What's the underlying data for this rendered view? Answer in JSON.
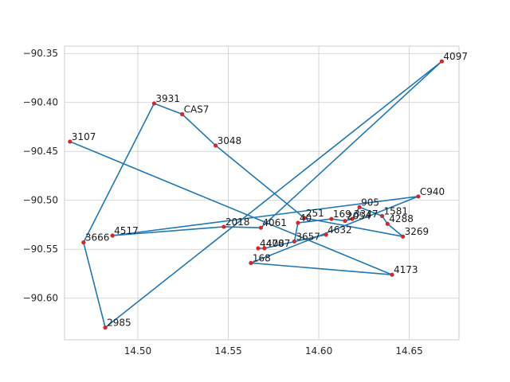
{
  "chart_data": {
    "type": "line",
    "title": "",
    "xlabel": "",
    "ylabel": "",
    "xlim": [
      14.4595,
      14.6775
    ],
    "ylim": [
      -90.6425,
      -90.3425
    ],
    "xticks": [
      14.5,
      14.55,
      14.6,
      14.65
    ],
    "xtick_labels": [
      "14.50",
      "14.55",
      "14.60",
      "14.65"
    ],
    "yticks": [
      -90.35,
      -90.4,
      -90.45,
      -90.5,
      -90.55,
      -90.6
    ],
    "ytick_labels": [
      "−90.35",
      "−90.40",
      "−90.45",
      "−90.50",
      "−90.55",
      "−90.60"
    ],
    "grid": true,
    "line_color": "#1f77b4",
    "marker_color": "#d62728",
    "points": [
      {
        "label": "3107",
        "x": 14.4625,
        "y": -90.44
      },
      {
        "label": "4173",
        "x": 14.6405,
        "y": -90.576
      },
      {
        "label": "168",
        "x": 14.5625,
        "y": -90.564
      },
      {
        "label": "C940",
        "x": 14.655,
        "y": -90.496
      },
      {
        "label": "4517",
        "x": 14.486,
        "y": -90.536
      },
      {
        "label": "2018",
        "x": 14.5475,
        "y": -90.527
      },
      {
        "label": "4061",
        "x": 14.568,
        "y": -90.528
      },
      {
        "label": "4097",
        "x": 14.668,
        "y": -90.358
      },
      {
        "label": "2985",
        "x": 14.482,
        "y": -90.63
      },
      {
        "label": "3666",
        "x": 14.47,
        "y": -90.543
      },
      {
        "label": "3931",
        "x": 14.509,
        "y": -90.401
      },
      {
        "label": "CAS7",
        "x": 14.5245,
        "y": -90.412
      },
      {
        "label": "3048",
        "x": 14.543,
        "y": -90.444
      },
      {
        "label": "251",
        "x": 14.592,
        "y": -90.518
      },
      {
        "label": "3269",
        "x": 14.6465,
        "y": -90.537
      },
      {
        "label": "4288",
        "x": 14.638,
        "y": -90.524
      },
      {
        "label": "1581",
        "x": 14.635,
        "y": -90.516
      },
      {
        "label": "905",
        "x": 14.6225,
        "y": -90.507
      },
      {
        "label": "3347",
        "x": 14.6185,
        "y": -90.519
      },
      {
        "label": "2054",
        "x": 14.6145,
        "y": -90.521
      },
      {
        "label": "169",
        "x": 14.607,
        "y": -90.519
      },
      {
        "label": "40",
        "x": 14.5885,
        "y": -90.523
      },
      {
        "label": "3657",
        "x": 14.5865,
        "y": -90.542
      },
      {
        "label": "4632",
        "x": 14.604,
        "y": -90.535
      },
      {
        "label": "4087",
        "x": 14.57,
        "y": -90.549
      },
      {
        "label": "4470",
        "x": 14.5665,
        "y": -90.549
      }
    ]
  }
}
